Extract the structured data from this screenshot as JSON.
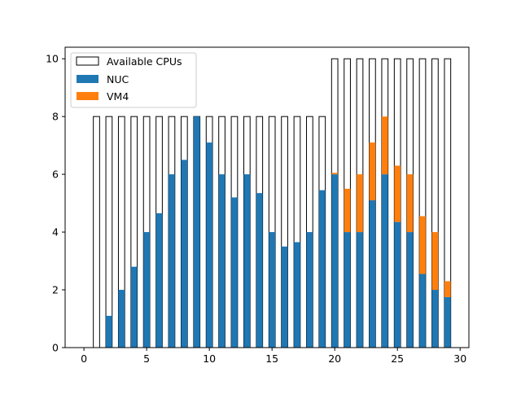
{
  "chart_data": {
    "type": "bar",
    "stacked": true,
    "title": "",
    "xlabel": "",
    "ylabel": "",
    "xlim": [
      -1.5,
      30.7
    ],
    "ylim": [
      0,
      10.4
    ],
    "xticks": [
      0,
      5,
      10,
      15,
      20,
      25,
      30
    ],
    "yticks": [
      0,
      2,
      4,
      6,
      8,
      10
    ],
    "grid": false,
    "legend_position": "top-left",
    "x": [
      0,
      1,
      2,
      3,
      4,
      5,
      6,
      7,
      8,
      9,
      10,
      11,
      12,
      13,
      14,
      15,
      16,
      17,
      18,
      19,
      20,
      21,
      22,
      23,
      24,
      25,
      26,
      27,
      28,
      29
    ],
    "available": {
      "name": "Available CPUs",
      "color": "#ffffff",
      "edgecolor": "#000000",
      "values": [
        0,
        8,
        8,
        8,
        8,
        8,
        8,
        8,
        8,
        8,
        8,
        8,
        8,
        8,
        8,
        8,
        8,
        8,
        8,
        8,
        10,
        10,
        10,
        10,
        10,
        10,
        10,
        10,
        10,
        10
      ]
    },
    "series": [
      {
        "name": "NUC",
        "color": "#1f77b4",
        "values": [
          0,
          0,
          1.1,
          2.0,
          2.8,
          4.0,
          4.65,
          6.0,
          6.5,
          8.0,
          7.1,
          6.0,
          5.2,
          6.0,
          5.35,
          4.0,
          3.5,
          3.65,
          4.0,
          5.45,
          6.0,
          4.0,
          4.0,
          5.1,
          6.0,
          4.35,
          4.0,
          2.55,
          2.0,
          1.75
        ]
      },
      {
        "name": "VM4",
        "color": "#ff7f0e",
        "values": [
          0,
          0,
          0,
          0,
          0,
          0,
          0,
          0,
          0,
          0,
          0,
          0,
          0,
          0,
          0,
          0,
          0,
          0,
          0,
          0,
          0.05,
          1.5,
          2.0,
          2.0,
          2.0,
          1.95,
          2.0,
          2.0,
          2.0,
          0.55
        ]
      }
    ]
  }
}
